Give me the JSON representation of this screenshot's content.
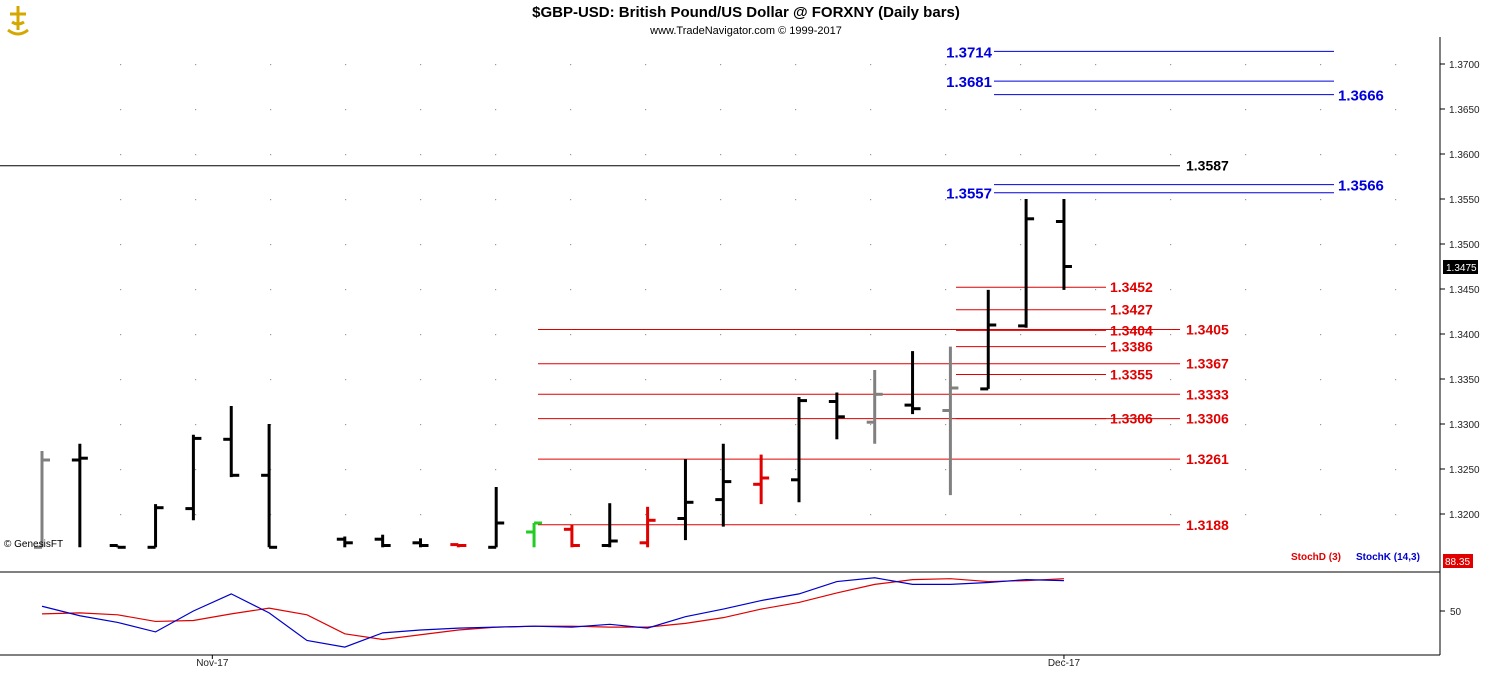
{
  "header": {
    "title": "$GBP-USD:  British Pound/US Dollar @ FORXNY  (Daily bars)",
    "subtitle": "www.TradeNavigator.com © 1999-2017",
    "logo_icon": "trade-navigator-logo-icon"
  },
  "watermark": "© GenesisFT",
  "price_badge": "1.3475",
  "stoch_badge": "88.35",
  "colors": {
    "black_bar": "#000000",
    "gray_bar": "#808080",
    "red_bar": "#e00000",
    "green_bar": "#22cc22",
    "red_level": "#e00000",
    "blue_level": "#0000dd",
    "stoch_d": "#e00000",
    "stoch_k": "#0000cc"
  },
  "chart_data": [
    {
      "type": "ohlc",
      "title": "$GBP-USD:  British Pound/US Dollar @ FORXNY  (Daily bars)",
      "ylim": [
        1.3163,
        1.3733
      ],
      "y_ticks": [
        "1.3200",
        "1.3250",
        "1.3300",
        "1.3350",
        "1.3400",
        "1.3450",
        "1.3500",
        "1.3550",
        "1.3600",
        "1.3650",
        "1.3700"
      ],
      "x_tick_labels": [
        {
          "label": "Nov-17",
          "bar": 4.5
        },
        {
          "label": "Dec-17",
          "bar": 27
        }
      ],
      "bars": [
        {
          "h": 1.327,
          "l": 1.3163,
          "o": 1.3163,
          "c": 1.326,
          "color": "gray"
        },
        {
          "h": 1.3278,
          "l": 1.3163,
          "o": 1.326,
          "c": 1.3262,
          "color": "black"
        },
        {
          "h": 1.3165,
          "l": 1.3163,
          "o": 1.3165,
          "c": 1.3163,
          "color": "black"
        },
        {
          "h": 1.3211,
          "l": 1.3163,
          "o": 1.3163,
          "c": 1.3207,
          "color": "black"
        },
        {
          "h": 1.3288,
          "l": 1.3193,
          "o": 1.3206,
          "c": 1.3284,
          "color": "black"
        },
        {
          "h": 1.332,
          "l": 1.3241,
          "o": 1.3283,
          "c": 1.3243,
          "color": "black"
        },
        {
          "h": 1.33,
          "l": 1.3163,
          "o": 1.3243,
          "c": 1.3163,
          "color": "black"
        },
        {
          "h": null,
          "l": null,
          "o": null,
          "c": null,
          "color": "black"
        },
        {
          "h": 1.3175,
          "l": 1.3163,
          "o": 1.3172,
          "c": 1.3168,
          "color": "black"
        },
        {
          "h": 1.3177,
          "l": 1.3163,
          "o": 1.3172,
          "c": 1.3165,
          "color": "black"
        },
        {
          "h": 1.3173,
          "l": 1.3163,
          "o": 1.3168,
          "c": 1.3165,
          "color": "black"
        },
        {
          "h": 1.3166,
          "l": 1.3163,
          "o": 1.3166,
          "c": 1.3165,
          "color": "red"
        },
        {
          "h": 1.323,
          "l": 1.3163,
          "o": 1.3163,
          "c": 1.319,
          "color": "black"
        },
        {
          "h": 1.319,
          "l": 1.3163,
          "o": 1.318,
          "c": 1.319,
          "color": "green"
        },
        {
          "h": 1.3188,
          "l": 1.3163,
          "o": 1.3183,
          "c": 1.3165,
          "color": "red"
        },
        {
          "h": 1.3212,
          "l": 1.3163,
          "o": 1.3165,
          "c": 1.317,
          "color": "black"
        },
        {
          "h": 1.3208,
          "l": 1.3163,
          "o": 1.3168,
          "c": 1.3193,
          "color": "red"
        },
        {
          "h": 1.3261,
          "l": 1.3171,
          "o": 1.3195,
          "c": 1.3213,
          "color": "black"
        },
        {
          "h": 1.3278,
          "l": 1.3186,
          "o": 1.3216,
          "c": 1.3236,
          "color": "black"
        },
        {
          "h": 1.3266,
          "l": 1.3211,
          "o": 1.3233,
          "c": 1.324,
          "color": "red"
        },
        {
          "h": 1.333,
          "l": 1.3213,
          "o": 1.3238,
          "c": 1.3326,
          "color": "black"
        },
        {
          "h": 1.3335,
          "l": 1.3283,
          "o": 1.3325,
          "c": 1.3308,
          "color": "black"
        },
        {
          "h": 1.336,
          "l": 1.3278,
          "o": 1.3302,
          "c": 1.3333,
          "color": "gray"
        },
        {
          "h": 1.3381,
          "l": 1.3311,
          "o": 1.3321,
          "c": 1.3317,
          "color": "black"
        },
        {
          "h": 1.3386,
          "l": 1.3221,
          "o": 1.3315,
          "c": 1.334,
          "color": "gray"
        },
        {
          "h": 1.3449,
          "l": 1.3339,
          "o": 1.3339,
          "c": 1.341,
          "color": "black"
        },
        {
          "h": 1.355,
          "l": 1.3407,
          "o": 1.3409,
          "c": 1.3528,
          "color": "black"
        },
        {
          "h": 1.355,
          "l": 1.3449,
          "o": 1.3525,
          "c": 1.3475,
          "color": "black"
        }
      ],
      "levels_blue": [
        {
          "value": 1.3714,
          "label": "1.3714",
          "side": "left",
          "from": 25,
          "to": 33
        },
        {
          "value": 1.3681,
          "label": "1.3681",
          "side": "left",
          "from": 25,
          "to": 33
        },
        {
          "value": 1.3666,
          "label": "1.3666",
          "side": "right",
          "from": 25,
          "to": 33
        },
        {
          "value": 1.3566,
          "label": "1.3566",
          "side": "right",
          "from": 25,
          "to": 33
        },
        {
          "value": 1.3557,
          "label": "1.3557",
          "side": "left",
          "from": 25,
          "to": 33
        }
      ],
      "level_black": {
        "value": 1.3587,
        "label": "1.3587"
      },
      "levels_red_short": [
        {
          "value": 1.3452,
          "label": "1.3452"
        },
        {
          "value": 1.3427,
          "label": "1.3427"
        },
        {
          "value": 1.3404,
          "label": "1.3404"
        },
        {
          "value": 1.3386,
          "label": "1.3386"
        },
        {
          "value": 1.3355,
          "label": "1.3355"
        },
        {
          "value": 1.3306,
          "label": "1.3306"
        }
      ],
      "levels_red_long": [
        {
          "value": 1.3405,
          "label": "1.3405"
        },
        {
          "value": 1.3367,
          "label": "1.3367"
        },
        {
          "value": 1.3333,
          "label": "1.3333"
        },
        {
          "value": 1.3306,
          "label": "1.3306"
        },
        {
          "value": 1.3261,
          "label": "1.3261"
        },
        {
          "value": 1.3188,
          "label": "1.3188"
        }
      ]
    },
    {
      "type": "line",
      "ylim": [
        0,
        100
      ],
      "y_ticks": [
        "50"
      ],
      "series": [
        {
          "name": "StochD (3)",
          "color": "red",
          "values": [
            47,
            48,
            46,
            39,
            40,
            47,
            53,
            46,
            26,
            20,
            25,
            30,
            33,
            34,
            34,
            33,
            33,
            37,
            43,
            52,
            59,
            69,
            78,
            83,
            84,
            81,
            82,
            84
          ]
        },
        {
          "name": "StochK (14,3)",
          "color": "blue",
          "values": [
            55,
            45,
            38,
            28,
            50,
            68,
            48,
            19,
            12,
            27,
            30,
            32,
            33,
            34,
            33,
            36,
            32,
            44,
            52,
            61,
            68,
            81,
            85,
            78,
            78,
            80,
            83,
            82
          ]
        }
      ]
    }
  ]
}
